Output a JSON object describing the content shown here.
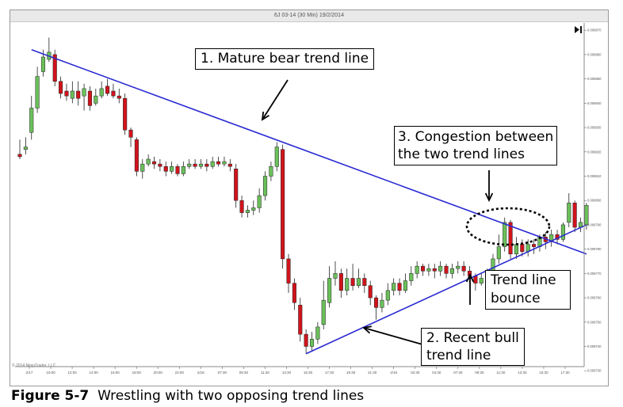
{
  "window": {
    "title": "6J 03-14 (30 Min)  19/2/2014",
    "copyright": "© 2014 NinjaTrader, LLC",
    "play_icon": "play-pause-icon"
  },
  "figure": {
    "label": "Figure 5-7",
    "caption": "Wrestling with two opposing trend lines"
  },
  "annotations": {
    "a1": "1. Mature bear trend line",
    "a2": "2. Recent bull\ntrend line",
    "a3": "3. Congestion between\nthe two trend lines",
    "a4": "Trend line\nbounce"
  },
  "colors": {
    "up": "#6bc05a",
    "down": "#d0141c",
    "trendline": "#2a2ad2",
    "grid": "#d4d4d4"
  },
  "chart_data": {
    "type": "candlestick",
    "title": "6J 03-14 (30 Min)  19/2/2014",
    "ylim": [
      0.009733,
      0.009873
    ],
    "y_ticks": [
      "0.009870",
      "0.009860",
      "0.009850",
      "0.009840",
      "0.009830",
      "0.009820",
      "0.009810",
      "0.009800",
      "0.009790",
      "0.009780",
      "0.009770",
      "0.009760",
      "0.009750",
      "0.009740",
      "0.009730"
    ],
    "x_ticks": [
      "2/17",
      "10:00",
      "12:00",
      "14:00",
      "16:00",
      "18:00",
      "20:00",
      "22:00",
      "2/18",
      "07:30",
      "09:30",
      "11:30",
      "13:30",
      "15:30",
      "17:30",
      "19:30",
      "21:30",
      "2/19",
      "02:30",
      "04:30",
      "07:30",
      "09:30",
      "11:30",
      "13:30",
      "15:30",
      "17:30"
    ],
    "candles": [
      [
        0.009819,
        0.009818,
        0.009825,
        0.009817
      ],
      [
        0.009821,
        0.009822,
        0.009826,
        0.009819
      ],
      [
        0.009828,
        0.009838,
        0.009843,
        0.009825
      ],
      [
        0.009838,
        0.009851,
        0.009855,
        0.009836
      ],
      [
        0.009853,
        0.009859,
        0.009862,
        0.009851
      ],
      [
        0.009858,
        0.009861,
        0.009867,
        0.009857
      ],
      [
        0.00986,
        0.009849,
        0.009862,
        0.009847
      ],
      [
        0.009849,
        0.009844,
        0.009851,
        0.009842
      ],
      [
        0.009845,
        0.009843,
        0.009848,
        0.009841
      ],
      [
        0.009842,
        0.009845,
        0.009849,
        0.00984
      ],
      [
        0.009845,
        0.009842,
        0.009849,
        0.009839
      ],
      [
        0.009843,
        0.009846,
        0.009848,
        0.009837
      ],
      [
        0.009845,
        0.009839,
        0.009847,
        0.009837
      ],
      [
        0.00984,
        0.009843,
        0.009846,
        0.009839
      ],
      [
        0.009843,
        0.009846,
        0.009849,
        0.009842
      ],
      [
        0.009847,
        0.009844,
        0.00985,
        0.009843
      ],
      [
        0.009845,
        0.009843,
        0.009848,
        0.009842
      ],
      [
        0.009843,
        0.009842,
        0.009846,
        0.00984
      ],
      [
        0.009842,
        0.009829,
        0.009844,
        0.009827
      ],
      [
        0.009829,
        0.009826,
        0.00983,
        0.009822
      ],
      [
        0.009825,
        0.009812,
        0.009826,
        0.00981
      ],
      [
        0.009812,
        0.009815,
        0.009817,
        0.009809
      ],
      [
        0.009815,
        0.009817,
        0.009819,
        0.009814
      ],
      [
        0.009816,
        0.009815,
        0.009818,
        0.009813
      ],
      [
        0.009815,
        0.009814,
        0.009817,
        0.009812
      ],
      [
        0.009814,
        0.009812,
        0.009816,
        0.00981
      ],
      [
        0.009812,
        0.009814,
        0.009816,
        0.009811
      ],
      [
        0.009814,
        0.009811,
        0.009815,
        0.00981
      ],
      [
        0.009811,
        0.009814,
        0.009816,
        0.00981
      ],
      [
        0.009814,
        0.009815,
        0.009817,
        0.009813
      ],
      [
        0.009815,
        0.009814,
        0.009817,
        0.009813
      ],
      [
        0.009814,
        0.009815,
        0.009817,
        0.009813
      ],
      [
        0.009815,
        0.009814,
        0.009817,
        0.009812
      ],
      [
        0.009814,
        0.009816,
        0.009818,
        0.009813
      ],
      [
        0.009816,
        0.009815,
        0.009818,
        0.009814
      ],
      [
        0.009815,
        0.009816,
        0.009818,
        0.009814
      ],
      [
        0.009815,
        0.009814,
        0.009817,
        0.009812
      ],
      [
        0.009813,
        0.0098,
        0.009815,
        0.009797
      ],
      [
        0.0098,
        0.009795,
        0.009802,
        0.009793
      ],
      [
        0.009795,
        0.009796,
        0.009798,
        0.009793
      ],
      [
        0.009796,
        0.009797,
        0.0098,
        0.009794
      ],
      [
        0.009797,
        0.009802,
        0.009805,
        0.009795
      ],
      [
        0.009802,
        0.00981,
        0.009812,
        0.0098
      ],
      [
        0.00981,
        0.009814,
        0.009816,
        0.009808
      ],
      [
        0.009814,
        0.009822,
        0.009824,
        0.009812
      ],
      [
        0.009821,
        0.009776,
        0.009823,
        0.009772
      ],
      [
        0.009776,
        0.009766,
        0.009778,
        0.009762
      ],
      [
        0.009766,
        0.009758,
        0.009768,
        0.009755
      ],
      [
        0.009757,
        0.009745,
        0.00976,
        0.009742
      ],
      [
        0.009745,
        0.00974,
        0.009747,
        0.009737
      ],
      [
        0.00974,
        0.009743,
        0.009746,
        0.009738
      ],
      [
        0.009743,
        0.009748,
        0.00975,
        0.009741
      ],
      [
        0.009749,
        0.009759,
        0.009767,
        0.009747
      ],
      [
        0.009758,
        0.009768,
        0.009773,
        0.009756
      ],
      [
        0.009768,
        0.00977,
        0.009775,
        0.009765
      ],
      [
        0.00977,
        0.009763,
        0.009772,
        0.00976
      ],
      [
        0.009763,
        0.009768,
        0.009772,
        0.009761
      ],
      [
        0.009768,
        0.009765,
        0.009774,
        0.009763
      ],
      [
        0.009765,
        0.009768,
        0.009772,
        0.009764
      ],
      [
        0.009768,
        0.009765,
        0.00977,
        0.009762
      ],
      [
        0.009765,
        0.00976,
        0.009767,
        0.009757
      ],
      [
        0.00976,
        0.009756,
        0.009761,
        0.009751
      ],
      [
        0.009756,
        0.009759,
        0.009762,
        0.009754
      ],
      [
        0.009759,
        0.009763,
        0.009766,
        0.009757
      ],
      [
        0.009763,
        0.009766,
        0.009768,
        0.009761
      ],
      [
        0.009766,
        0.009763,
        0.009768,
        0.009761
      ],
      [
        0.009763,
        0.009767,
        0.00977,
        0.009762
      ],
      [
        0.009767,
        0.00977,
        0.009773,
        0.009765
      ],
      [
        0.00977,
        0.009773,
        0.009775,
        0.009768
      ],
      [
        0.009773,
        0.009771,
        0.009774,
        0.009769
      ],
      [
        0.009771,
        0.009772,
        0.009774,
        0.009769
      ],
      [
        0.009772,
        0.009771,
        0.009774,
        0.009768
      ],
      [
        0.009771,
        0.009773,
        0.009775,
        0.009769
      ],
      [
        0.009773,
        0.00977,
        0.009774,
        0.009768
      ],
      [
        0.00977,
        0.009772,
        0.009774,
        0.009768
      ],
      [
        0.009772,
        0.009773,
        0.009775,
        0.00977
      ],
      [
        0.009773,
        0.009771,
        0.009775,
        0.009769
      ],
      [
        0.009771,
        0.009769,
        0.009773,
        0.009766
      ],
      [
        0.009769,
        0.009766,
        0.00977,
        0.009763
      ],
      [
        0.009766,
        0.009768,
        0.00977,
        0.009765
      ],
      [
        0.009768,
        0.00977,
        0.009772,
        0.009766
      ],
      [
        0.00977,
        0.009776,
        0.009778,
        0.009769
      ],
      [
        0.009776,
        0.009781,
        0.009786,
        0.009774
      ],
      [
        0.009781,
        0.009791,
        0.009793,
        0.009779
      ],
      [
        0.009791,
        0.009778,
        0.009792,
        0.009776
      ],
      [
        0.009778,
        0.009782,
        0.009785,
        0.009776
      ],
      [
        0.009782,
        0.009779,
        0.009784,
        0.009777
      ],
      [
        0.009779,
        0.009782,
        0.009784,
        0.009777
      ],
      [
        0.009782,
        0.009781,
        0.009784,
        0.009778
      ],
      [
        0.009781,
        0.009785,
        0.009786,
        0.009779
      ],
      [
        0.009785,
        0.009783,
        0.009787,
        0.00978
      ],
      [
        0.009783,
        0.009786,
        0.009788,
        0.009781
      ],
      [
        0.009786,
        0.009784,
        0.009788,
        0.009782
      ],
      [
        0.009784,
        0.00979,
        0.009791,
        0.009783
      ],
      [
        0.009791,
        0.009799,
        0.009803,
        0.009789
      ],
      [
        0.009799,
        0.009789,
        0.0098,
        0.009787
      ],
      [
        0.009789,
        0.009791,
        0.009793,
        0.009787
      ],
      [
        0.00979,
        0.009798,
        0.009799,
        0.009788
      ]
    ],
    "trendlines": [
      {
        "label": "1. Mature bear trend line",
        "from": [
          2,
          0.009862
        ],
        "to": [
          97,
          0.009778
        ]
      },
      {
        "label": "2. Recent bull trend line",
        "from": [
          49,
          0.009737
        ],
        "to": [
          97,
          0.00979
        ]
      }
    ]
  }
}
